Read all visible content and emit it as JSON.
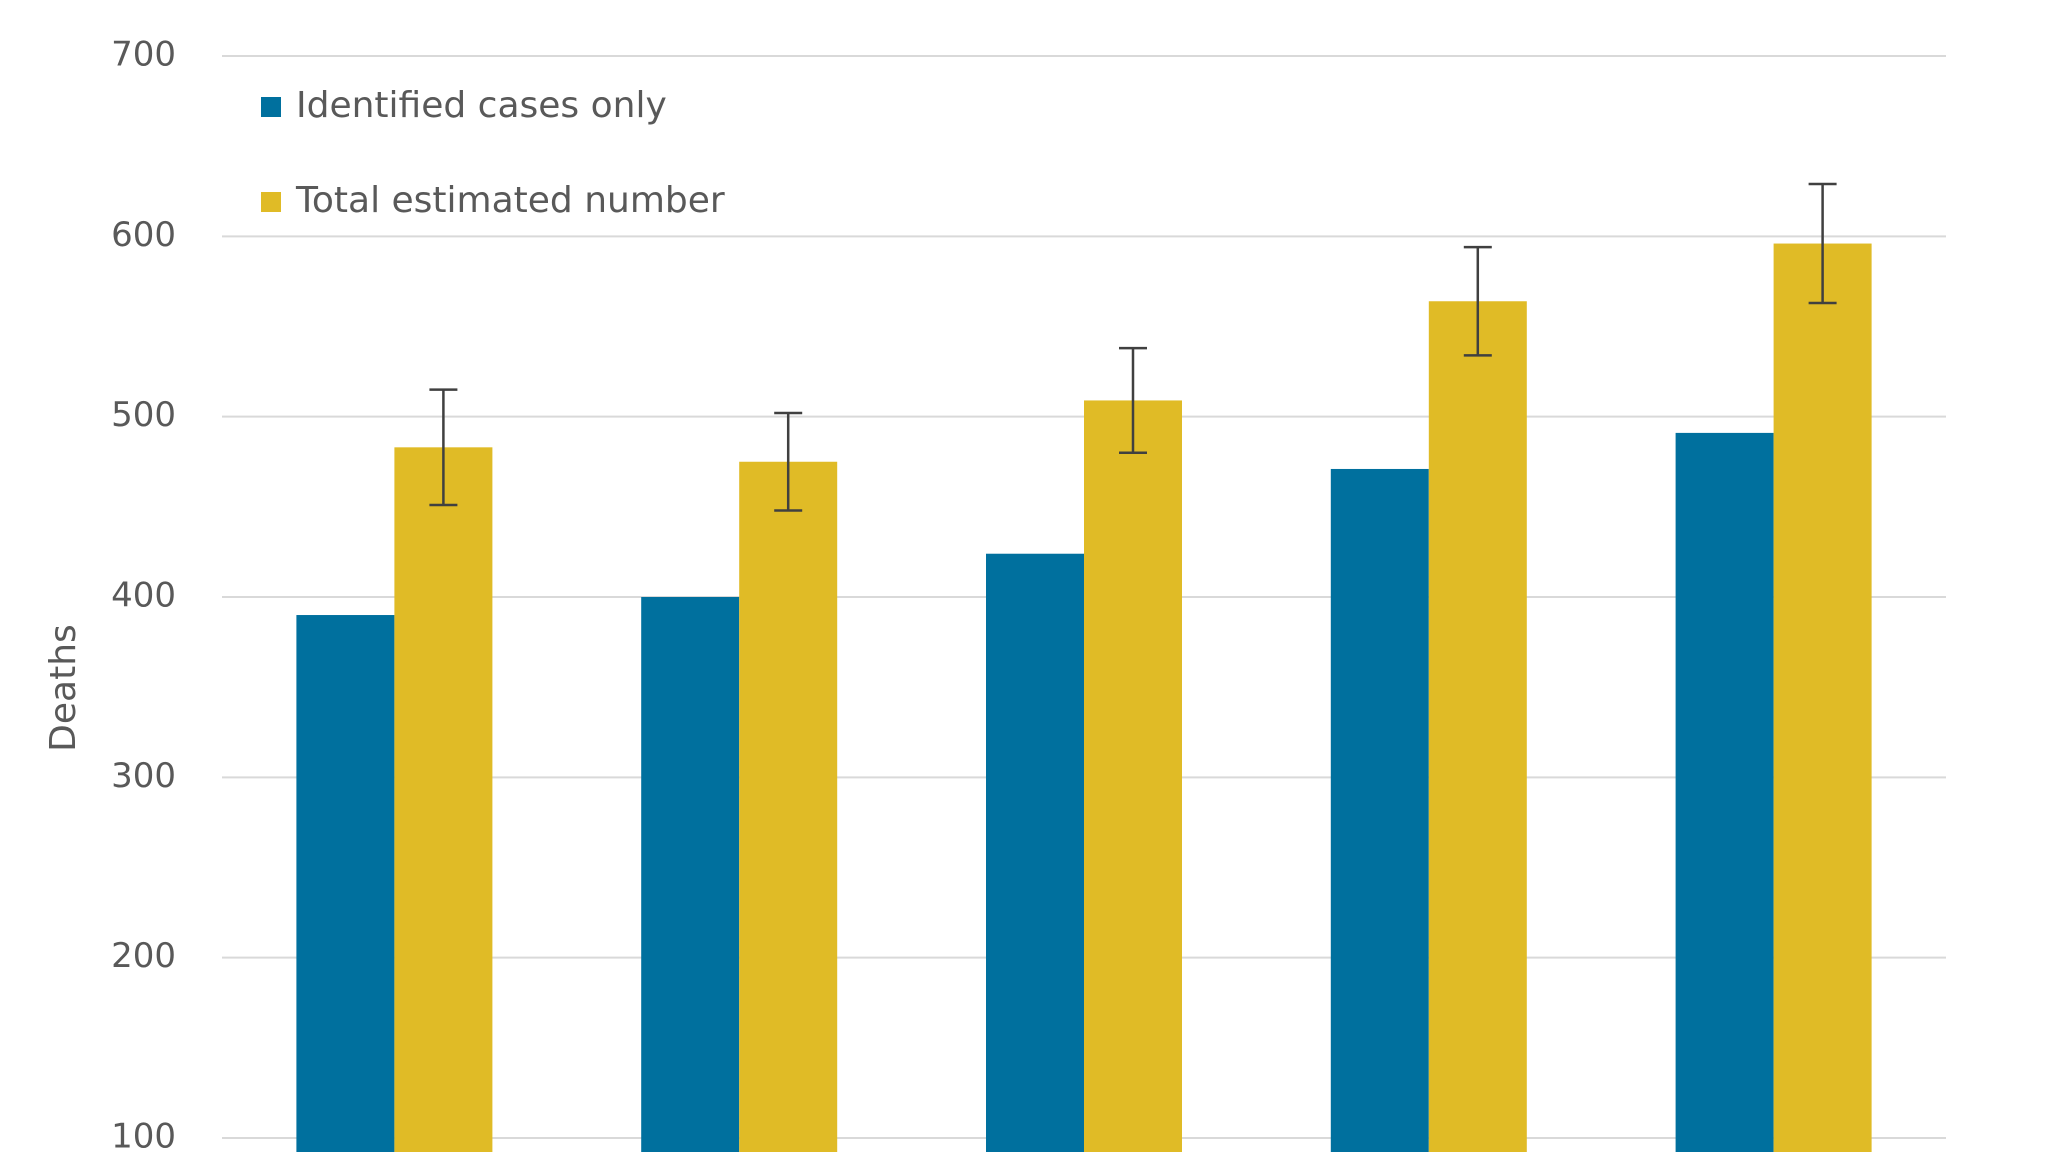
{
  "chart_data": {
    "type": "bar",
    "y_label": "Deaths",
    "categories": [
      null,
      null,
      null,
      null,
      null
    ],
    "series": [
      {
        "name": "Identified cases only",
        "color": "#00709e",
        "values": [
          390,
          400,
          424,
          471,
          491
        ]
      },
      {
        "name": "Total estimated number",
        "color": "#e0bb26",
        "values": [
          483,
          475,
          509,
          564,
          596
        ],
        "errors": [
          32,
          27,
          29,
          30,
          33
        ]
      }
    ],
    "ylim": [
      100,
      700
    ],
    "yticks": [
      100,
      200,
      300,
      400,
      500,
      600,
      700
    ],
    "grid": true,
    "legend": "top-left"
  }
}
